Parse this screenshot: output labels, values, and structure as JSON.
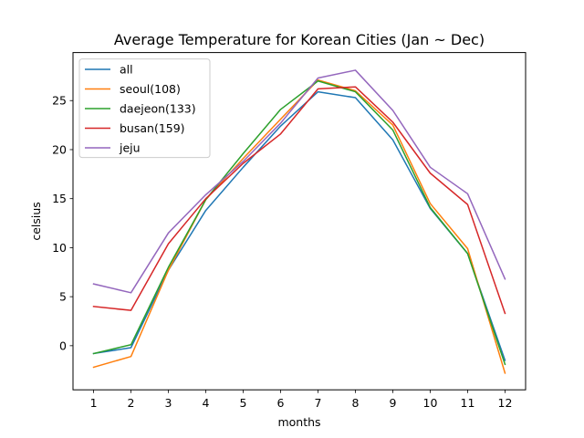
{
  "chart_data": {
    "type": "line",
    "title": "Average Temperature for Korean Cities (Jan ~ Dec)",
    "xlabel": "months",
    "ylabel": "celsius",
    "x": [
      1,
      2,
      3,
      4,
      5,
      6,
      7,
      8,
      9,
      10,
      11,
      12
    ],
    "xlim": [
      0.45,
      12.55
    ],
    "ylim": [
      -4.5,
      29.9
    ],
    "yticks": [
      0,
      5,
      10,
      15,
      20,
      25
    ],
    "grid": false,
    "legend_position": "upper-left",
    "series": [
      {
        "name": "all",
        "color": "#1f77b4",
        "values": [
          -0.8,
          -0.2,
          7.7,
          13.8,
          18.2,
          22.4,
          25.9,
          25.3,
          21.0,
          14.0,
          9.4,
          -1.5
        ]
      },
      {
        "name": "seoul(108)",
        "color": "#ff7f0e",
        "values": [
          -2.2,
          -1.1,
          7.7,
          14.9,
          19.1,
          23.1,
          27.1,
          26.0,
          22.5,
          14.5,
          9.9,
          -2.8
        ]
      },
      {
        "name": "daejeon(133)",
        "color": "#2ca02c",
        "values": [
          -0.8,
          0.1,
          8.0,
          14.9,
          19.6,
          24.1,
          27.0,
          25.9,
          22.0,
          14.1,
          9.4,
          -1.9
        ]
      },
      {
        "name": "busan(159)",
        "color": "#d62728",
        "values": [
          4.0,
          3.6,
          10.4,
          15.0,
          18.6,
          21.6,
          26.2,
          26.4,
          22.8,
          17.6,
          14.4,
          3.3
        ]
      },
      {
        "name": "jeju",
        "color": "#9467bd",
        "values": [
          6.3,
          5.4,
          11.5,
          15.4,
          18.8,
          22.7,
          27.3,
          28.1,
          24.0,
          18.2,
          15.5,
          6.8
        ]
      }
    ]
  }
}
